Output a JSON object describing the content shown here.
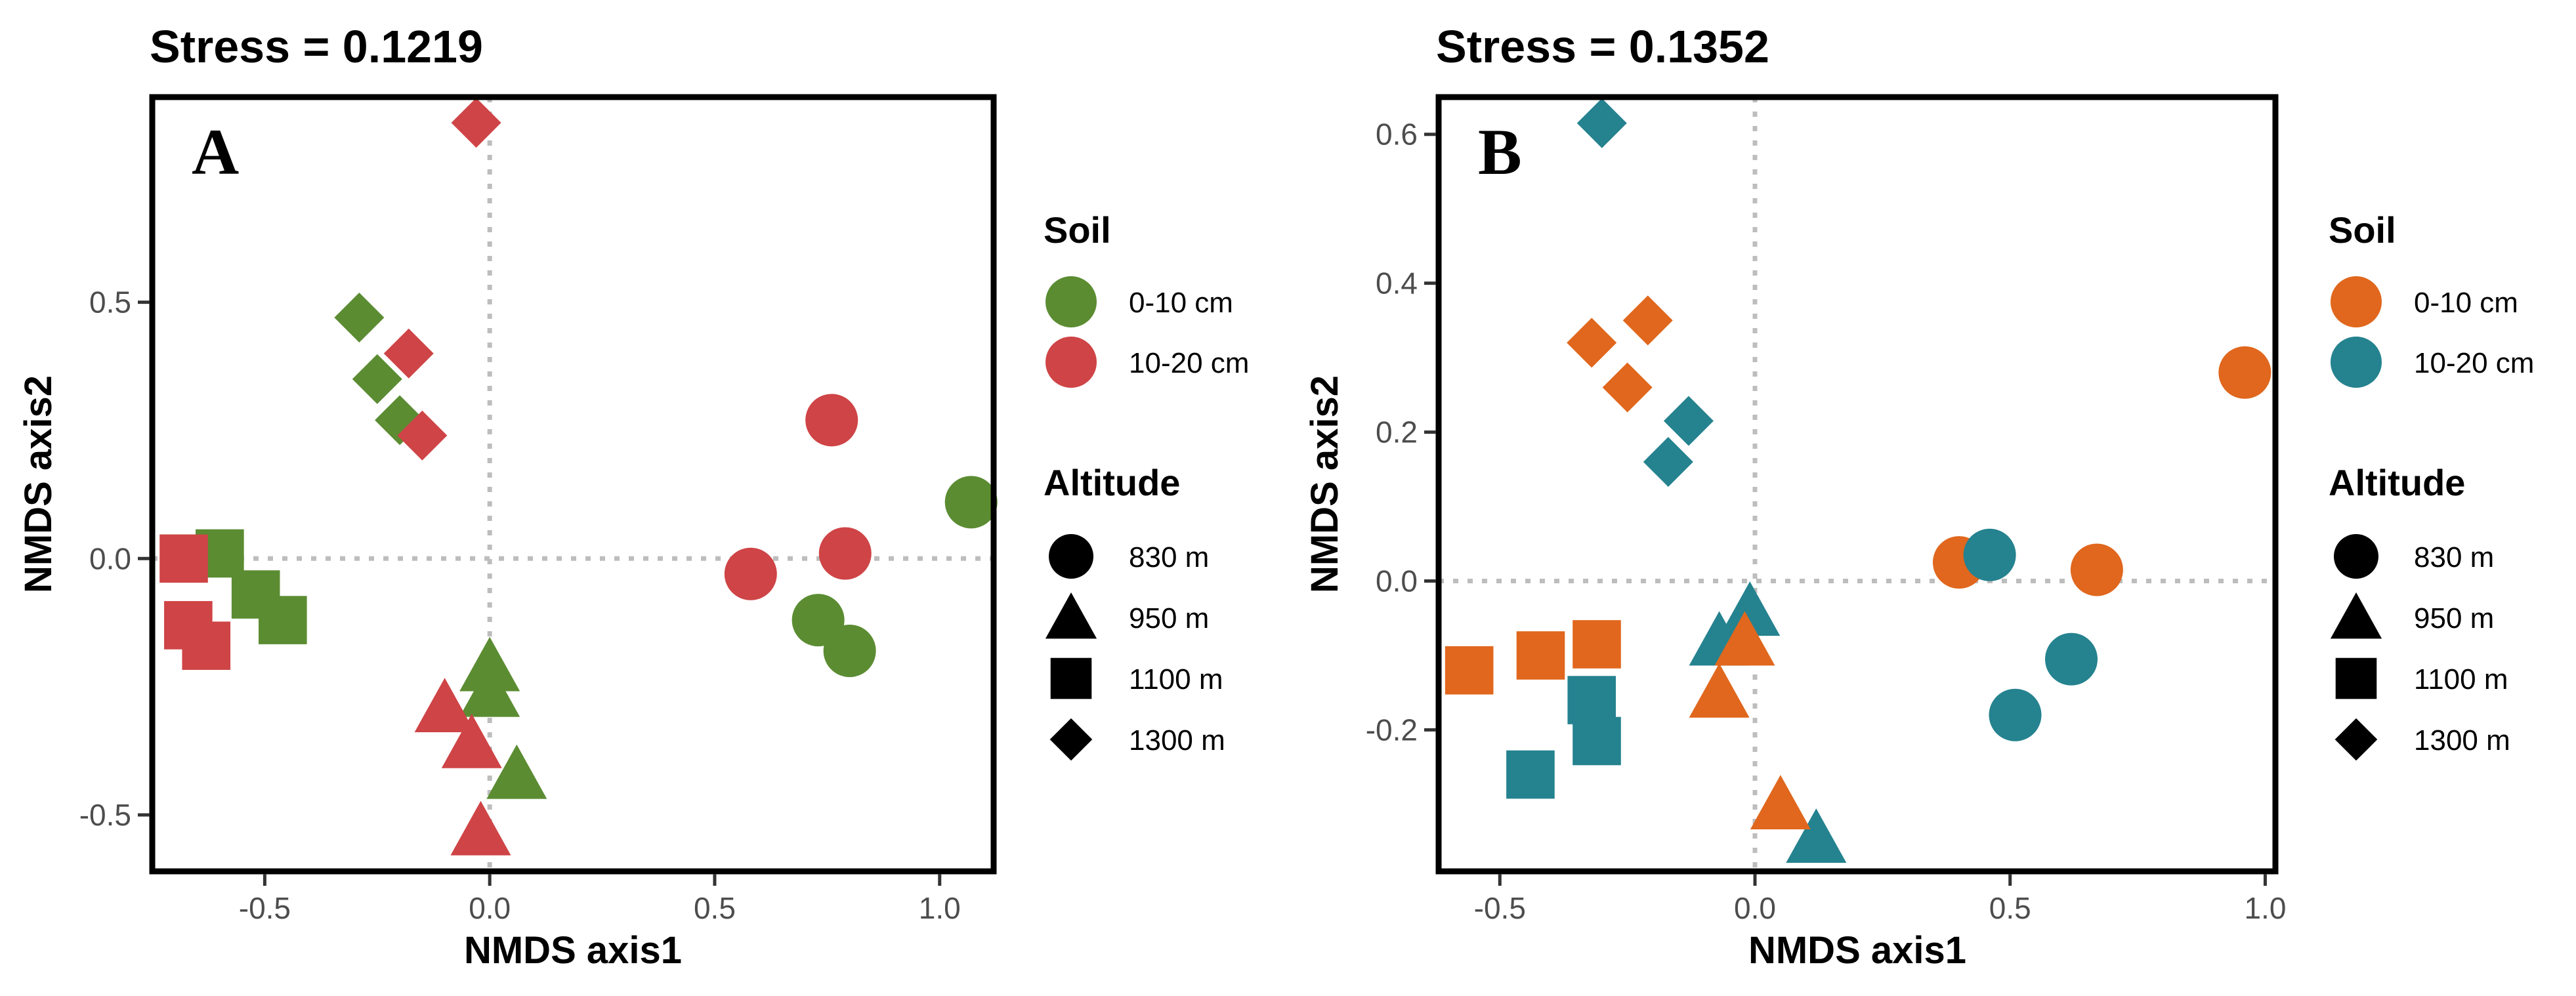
{
  "chart_data": [
    {
      "type": "scatter",
      "panel_label": "A",
      "title": "Stress = 0.1219",
      "xlabel": "NMDS axis1",
      "ylabel": "NMDS axis2",
      "xlim": [
        -0.75,
        1.12
      ],
      "ylim": [
        -0.61,
        0.9
      ],
      "x_ticks": [
        -0.5,
        0.0,
        0.5,
        1.0
      ],
      "x_tick_labels": [
        "-0.5",
        "0.0",
        "0.5",
        "1.0"
      ],
      "y_ticks": [
        -0.5,
        0.0,
        0.5
      ],
      "y_tick_labels": [
        "-0.5",
        "0.0",
        "0.5"
      ],
      "reference_lines": {
        "x": 0,
        "y": 0
      },
      "soil_legend": {
        "title": "Soil",
        "entries": [
          {
            "label": "0-10 cm",
            "color": "#5b8c32"
          },
          {
            "label": "10-20 cm",
            "color": "#cf4446"
          }
        ]
      },
      "altitude_legend": {
        "title": "Altitude",
        "entries": [
          {
            "label": "830 m",
            "shape": "circle"
          },
          {
            "label": "950 m",
            "shape": "triangle"
          },
          {
            "label": "1100 m",
            "shape": "square"
          },
          {
            "label": "1300 m",
            "shape": "diamond"
          }
        ]
      },
      "points": [
        {
          "x": -0.03,
          "y": 0.85,
          "soil": "10-20 cm",
          "altitude": "1300 m"
        },
        {
          "x": -0.29,
          "y": 0.47,
          "soil": "0-10 cm",
          "altitude": "1300 m"
        },
        {
          "x": -0.25,
          "y": 0.35,
          "soil": "0-10 cm",
          "altitude": "1300 m"
        },
        {
          "x": -0.2,
          "y": 0.27,
          "soil": "0-10 cm",
          "altitude": "1300 m"
        },
        {
          "x": -0.18,
          "y": 0.4,
          "soil": "10-20 cm",
          "altitude": "1300 m"
        },
        {
          "x": -0.15,
          "y": 0.24,
          "soil": "10-20 cm",
          "altitude": "1300 m"
        },
        {
          "x": -0.6,
          "y": 0.01,
          "soil": "0-10 cm",
          "altitude": "1100 m"
        },
        {
          "x": -0.52,
          "y": -0.07,
          "soil": "0-10 cm",
          "altitude": "1100 m"
        },
        {
          "x": -0.46,
          "y": -0.12,
          "soil": "0-10 cm",
          "altitude": "1100 m"
        },
        {
          "x": -0.68,
          "y": 0.0,
          "soil": "10-20 cm",
          "altitude": "1100 m"
        },
        {
          "x": -0.67,
          "y": -0.13,
          "soil": "10-20 cm",
          "altitude": "1100 m"
        },
        {
          "x": -0.63,
          "y": -0.17,
          "soil": "10-20 cm",
          "altitude": "1100 m"
        },
        {
          "x": 0.0,
          "y": -0.21,
          "soil": "0-10 cm",
          "altitude": "950 m"
        },
        {
          "x": 0.0,
          "y": -0.26,
          "soil": "0-10 cm",
          "altitude": "950 m"
        },
        {
          "x": 0.06,
          "y": -0.42,
          "soil": "0-10 cm",
          "altitude": "950 m"
        },
        {
          "x": -0.1,
          "y": -0.29,
          "soil": "10-20 cm",
          "altitude": "950 m"
        },
        {
          "x": -0.04,
          "y": -0.36,
          "soil": "10-20 cm",
          "altitude": "950 m"
        },
        {
          "x": -0.02,
          "y": -0.53,
          "soil": "10-20 cm",
          "altitude": "950 m"
        },
        {
          "x": 0.76,
          "y": 0.27,
          "soil": "10-20 cm",
          "altitude": "830 m"
        },
        {
          "x": 0.79,
          "y": 0.01,
          "soil": "10-20 cm",
          "altitude": "830 m"
        },
        {
          "x": 0.58,
          "y": -0.03,
          "soil": "10-20 cm",
          "altitude": "830 m"
        },
        {
          "x": 1.07,
          "y": 0.11,
          "soil": "0-10 cm",
          "altitude": "830 m"
        },
        {
          "x": 0.73,
          "y": -0.12,
          "soil": "0-10 cm",
          "altitude": "830 m"
        },
        {
          "x": 0.8,
          "y": -0.18,
          "soil": "0-10 cm",
          "altitude": "830 m"
        }
      ]
    },
    {
      "type": "scatter",
      "panel_label": "B",
      "title": "Stress = 0.1352",
      "xlabel": "NMDS axis1",
      "ylabel": "NMDS axis2",
      "xlim": [
        -0.62,
        1.02
      ],
      "ylim": [
        -0.39,
        0.65
      ],
      "x_ticks": [
        -0.5,
        0.0,
        0.5,
        1.0
      ],
      "x_tick_labels": [
        "-0.5",
        "0.0",
        "0.5",
        "1.0"
      ],
      "y_ticks": [
        -0.2,
        0.0,
        0.2,
        0.4,
        0.6
      ],
      "y_tick_labels": [
        "-0.2",
        "0.0",
        "0.2",
        "0.4",
        "0.6"
      ],
      "reference_lines": {
        "x": 0,
        "y": 0
      },
      "soil_legend": {
        "title": "Soil",
        "entries": [
          {
            "label": "0-10 cm",
            "color": "#e0671d"
          },
          {
            "label": "10-20 cm",
            "color": "#25828f"
          }
        ]
      },
      "altitude_legend": {
        "title": "Altitude",
        "entries": [
          {
            "label": "830 m",
            "shape": "circle"
          },
          {
            "label": "950 m",
            "shape": "triangle"
          },
          {
            "label": "1100 m",
            "shape": "square"
          },
          {
            "label": "1300 m",
            "shape": "diamond"
          }
        ]
      },
      "points": [
        {
          "x": -0.3,
          "y": 0.615,
          "soil": "10-20 cm",
          "altitude": "1300 m"
        },
        {
          "x": -0.32,
          "y": 0.32,
          "soil": "0-10 cm",
          "altitude": "1300 m"
        },
        {
          "x": -0.21,
          "y": 0.35,
          "soil": "0-10 cm",
          "altitude": "1300 m"
        },
        {
          "x": -0.25,
          "y": 0.26,
          "soil": "0-10 cm",
          "altitude": "1300 m"
        },
        {
          "x": -0.13,
          "y": 0.215,
          "soil": "10-20 cm",
          "altitude": "1300 m"
        },
        {
          "x": -0.17,
          "y": 0.16,
          "soil": "10-20 cm",
          "altitude": "1300 m"
        },
        {
          "x": -0.56,
          "y": -0.12,
          "soil": "0-10 cm",
          "altitude": "1100 m"
        },
        {
          "x": -0.42,
          "y": -0.1,
          "soil": "0-10 cm",
          "altitude": "1100 m"
        },
        {
          "x": -0.31,
          "y": -0.085,
          "soil": "0-10 cm",
          "altitude": "1100 m"
        },
        {
          "x": -0.32,
          "y": -0.16,
          "soil": "10-20 cm",
          "altitude": "1100 m"
        },
        {
          "x": -0.31,
          "y": -0.215,
          "soil": "10-20 cm",
          "altitude": "1100 m"
        },
        {
          "x": -0.44,
          "y": -0.26,
          "soil": "10-20 cm",
          "altitude": "1100 m"
        },
        {
          "x": -0.07,
          "y": -0.08,
          "soil": "10-20 cm",
          "altitude": "950 m"
        },
        {
          "x": -0.01,
          "y": -0.04,
          "soil": "10-20 cm",
          "altitude": "950 m"
        },
        {
          "x": 0.12,
          "y": -0.345,
          "soil": "10-20 cm",
          "altitude": "950 m"
        },
        {
          "x": -0.02,
          "y": -0.08,
          "soil": "0-10 cm",
          "altitude": "950 m"
        },
        {
          "x": -0.07,
          "y": -0.15,
          "soil": "0-10 cm",
          "altitude": "950 m"
        },
        {
          "x": 0.05,
          "y": -0.3,
          "soil": "0-10 cm",
          "altitude": "950 m"
        },
        {
          "x": 0.96,
          "y": 0.28,
          "soil": "0-10 cm",
          "altitude": "830 m"
        },
        {
          "x": 0.4,
          "y": 0.025,
          "soil": "0-10 cm",
          "altitude": "830 m"
        },
        {
          "x": 0.67,
          "y": 0.015,
          "soil": "0-10 cm",
          "altitude": "830 m"
        },
        {
          "x": 0.46,
          "y": 0.035,
          "soil": "10-20 cm",
          "altitude": "830 m"
        },
        {
          "x": 0.62,
          "y": -0.105,
          "soil": "10-20 cm",
          "altitude": "830 m"
        },
        {
          "x": 0.51,
          "y": -0.18,
          "soil": "10-20 cm",
          "altitude": "830 m"
        }
      ]
    }
  ]
}
